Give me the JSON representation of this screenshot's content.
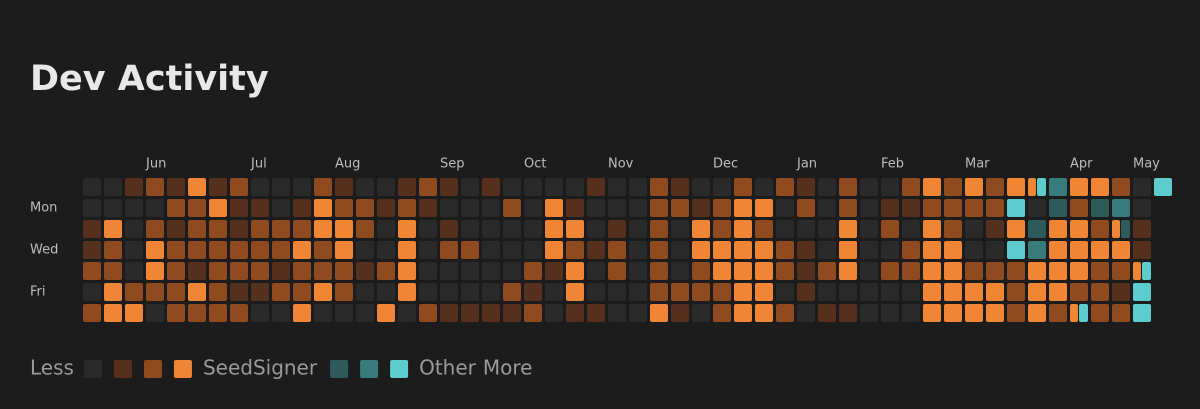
{
  "chart_data": {
    "type": "heatmap",
    "title": "Dev Activity",
    "categories": [
      null,
      null,
      null,
      "Jun",
      null,
      null,
      null,
      null,
      "Jul",
      null,
      null,
      null,
      "Aug",
      null,
      null,
      null,
      null,
      "Sep",
      null,
      null,
      null,
      "Oct",
      null,
      null,
      null,
      "Nov",
      null,
      null,
      null,
      null,
      "Dec",
      null,
      null,
      null,
      "Jan",
      null,
      null,
      null,
      "Feb",
      null,
      null,
      null,
      "Mar",
      null,
      null,
      null,
      null,
      "Apr",
      null,
      null,
      "May",
      null
    ],
    "rows": [
      null,
      "Mon",
      null,
      "Wed",
      null,
      "Fri",
      null
    ],
    "empty_color": "#2a2a2a",
    "legend_low": "Less",
    "legend_high": "More",
    "series": [
      {
        "name": "SeedSigner",
        "colors": [
          "#56301f",
          "#8f4a1f",
          "#f08536"
        ],
        "values": [
          [
            0,
            0,
            1,
            1,
            2,
            0,
            2
          ],
          [
            0,
            0,
            3,
            2,
            2,
            3,
            3
          ],
          [
            1,
            0,
            0,
            0,
            0,
            2,
            3
          ],
          [
            2,
            0,
            2,
            3,
            3,
            2,
            0
          ],
          [
            1,
            2,
            1,
            2,
            2,
            2,
            2
          ],
          [
            3,
            2,
            2,
            2,
            1,
            3,
            2
          ],
          [
            1,
            3,
            2,
            2,
            2,
            2,
            2
          ],
          [
            2,
            1,
            1,
            2,
            2,
            1,
            2
          ],
          [
            0,
            1,
            2,
            2,
            2,
            1,
            0
          ],
          [
            0,
            0,
            2,
            2,
            1,
            2,
            0
          ],
          [
            0,
            1,
            2,
            3,
            2,
            2,
            3
          ],
          [
            2,
            3,
            3,
            2,
            2,
            3,
            0
          ],
          [
            1,
            2,
            3,
            3,
            2,
            2,
            0
          ],
          [
            0,
            2,
            2,
            0,
            1,
            0,
            0
          ],
          [
            0,
            1,
            0,
            0,
            2,
            0,
            3
          ],
          [
            1,
            2,
            3,
            3,
            3,
            3,
            0
          ],
          [
            2,
            1,
            0,
            0,
            0,
            0,
            2
          ],
          [
            1,
            0,
            1,
            2,
            0,
            0,
            1
          ],
          [
            0,
            0,
            0,
            2,
            0,
            0,
            1
          ],
          [
            1,
            0,
            0,
            0,
            0,
            0,
            1
          ],
          [
            0,
            2,
            0,
            0,
            0,
            2,
            1
          ],
          [
            0,
            0,
            0,
            0,
            2,
            1,
            2
          ],
          [
            0,
            3,
            3,
            3,
            1,
            0,
            0
          ],
          [
            0,
            1,
            3,
            2,
            3,
            3,
            1
          ],
          [
            1,
            0,
            0,
            1,
            0,
            0,
            1
          ],
          [
            0,
            0,
            1,
            2,
            2,
            0,
            0
          ],
          [
            0,
            0,
            0,
            0,
            0,
            0,
            0
          ],
          [
            2,
            2,
            2,
            2,
            2,
            2,
            3
          ],
          [
            1,
            2,
            0,
            0,
            0,
            2,
            1
          ],
          [
            0,
            1,
            3,
            3,
            2,
            2,
            0
          ],
          [
            0,
            2,
            2,
            3,
            3,
            2,
            2
          ],
          [
            2,
            3,
            3,
            3,
            3,
            3,
            3
          ],
          [
            0,
            3,
            2,
            3,
            3,
            3,
            3
          ],
          [
            2,
            0,
            0,
            2,
            2,
            0,
            2
          ],
          [
            1,
            2,
            0,
            1,
            1,
            1,
            0
          ],
          [
            0,
            0,
            0,
            0,
            2,
            0,
            1
          ],
          [
            2,
            2,
            3,
            3,
            3,
            0,
            1
          ],
          [
            0,
            0,
            0,
            0,
            0,
            0,
            0
          ],
          [
            0,
            1,
            2,
            0,
            2,
            0,
            0
          ],
          [
            2,
            1,
            0,
            2,
            2,
            0,
            0
          ],
          [
            3,
            2,
            3,
            3,
            3,
            3,
            3
          ],
          [
            2,
            2,
            2,
            3,
            3,
            3,
            3
          ],
          [
            3,
            2,
            0,
            0,
            2,
            3,
            3
          ],
          [
            2,
            2,
            1,
            0,
            2,
            3,
            3
          ],
          [
            3,
            0,
            3,
            0,
            2,
            2,
            2
          ],
          [
            3,
            0,
            0,
            0,
            3,
            3,
            3
          ],
          [
            0,
            0,
            3,
            3,
            3,
            3,
            2
          ],
          [
            3,
            2,
            3,
            3,
            3,
            2,
            3
          ],
          [
            3,
            0,
            2,
            3,
            2,
            2,
            2
          ],
          [
            2,
            0,
            3,
            3,
            2,
            1,
            2
          ],
          [
            0,
            0,
            1,
            1,
            3,
            0,
            0
          ],
          [
            0,
            null,
            null,
            null,
            null,
            null,
            null
          ]
        ]
      },
      {
        "name": "Other",
        "colors": [
          "#2f5a5a",
          "#377b7b",
          "#5ccccc"
        ],
        "values": [
          [
            0,
            0,
            0,
            0,
            0,
            0,
            0
          ],
          [
            0,
            0,
            0,
            0,
            0,
            0,
            0
          ],
          [
            0,
            0,
            0,
            0,
            0,
            0,
            0
          ],
          [
            0,
            0,
            0,
            0,
            0,
            0,
            0
          ],
          [
            0,
            0,
            0,
            0,
            0,
            0,
            0
          ],
          [
            0,
            0,
            0,
            0,
            0,
            0,
            0
          ],
          [
            0,
            0,
            0,
            0,
            0,
            0,
            0
          ],
          [
            0,
            0,
            0,
            0,
            0,
            0,
            0
          ],
          [
            0,
            0,
            0,
            0,
            0,
            0,
            0
          ],
          [
            0,
            0,
            0,
            0,
            0,
            0,
            0
          ],
          [
            0,
            0,
            0,
            0,
            0,
            0,
            0
          ],
          [
            0,
            0,
            0,
            0,
            0,
            0,
            0
          ],
          [
            0,
            0,
            0,
            0,
            0,
            0,
            0
          ],
          [
            0,
            0,
            0,
            0,
            0,
            0,
            0
          ],
          [
            0,
            0,
            0,
            0,
            0,
            0,
            0
          ],
          [
            0,
            0,
            0,
            0,
            0,
            0,
            0
          ],
          [
            0,
            0,
            0,
            0,
            0,
            0,
            0
          ],
          [
            0,
            0,
            0,
            0,
            0,
            0,
            0
          ],
          [
            0,
            0,
            0,
            0,
            0,
            0,
            0
          ],
          [
            0,
            0,
            0,
            0,
            0,
            0,
            0
          ],
          [
            0,
            0,
            0,
            0,
            0,
            0,
            0
          ],
          [
            0,
            0,
            0,
            0,
            0,
            0,
            0
          ],
          [
            0,
            0,
            0,
            0,
            0,
            0,
            0
          ],
          [
            0,
            0,
            0,
            0,
            0,
            0,
            0
          ],
          [
            0,
            0,
            0,
            0,
            0,
            0,
            0
          ],
          [
            0,
            0,
            0,
            0,
            0,
            0,
            0
          ],
          [
            0,
            0,
            0,
            0,
            0,
            0,
            0
          ],
          [
            0,
            0,
            0,
            0,
            0,
            0,
            0
          ],
          [
            0,
            0,
            0,
            0,
            0,
            0,
            0
          ],
          [
            0,
            0,
            0,
            0,
            0,
            0,
            0
          ],
          [
            0,
            0,
            0,
            0,
            0,
            0,
            0
          ],
          [
            0,
            0,
            0,
            0,
            0,
            0,
            0
          ],
          [
            0,
            0,
            0,
            0,
            0,
            0,
            0
          ],
          [
            0,
            0,
            0,
            0,
            0,
            0,
            0
          ],
          [
            0,
            0,
            0,
            0,
            0,
            0,
            0
          ],
          [
            0,
            0,
            0,
            0,
            0,
            0,
            0
          ],
          [
            0,
            0,
            0,
            0,
            0,
            0,
            0
          ],
          [
            0,
            0,
            0,
            0,
            0,
            0,
            0
          ],
          [
            0,
            0,
            0,
            0,
            0,
            0,
            0
          ],
          [
            0,
            0,
            0,
            0,
            0,
            0,
            0
          ],
          [
            0,
            0,
            0,
            0,
            0,
            0,
            0
          ],
          [
            0,
            0,
            0,
            0,
            0,
            0,
            0
          ],
          [
            0,
            0,
            0,
            0,
            0,
            0,
            0
          ],
          [
            0,
            0,
            0,
            0,
            0,
            0,
            0
          ],
          [
            0,
            3,
            0,
            3,
            0,
            0,
            0
          ],
          [
            3,
            0,
            1,
            2,
            0,
            0,
            0
          ],
          [
            2,
            1,
            0,
            0,
            0,
            0,
            0
          ],
          [
            0,
            0,
            0,
            0,
            0,
            0,
            3
          ],
          [
            0,
            1,
            0,
            0,
            0,
            0,
            0
          ],
          [
            0,
            2,
            1,
            0,
            0,
            0,
            0
          ],
          [
            0,
            0,
            0,
            0,
            3,
            3,
            3
          ],
          [
            3,
            null,
            null,
            null,
            null,
            null,
            null
          ]
        ]
      }
    ]
  }
}
